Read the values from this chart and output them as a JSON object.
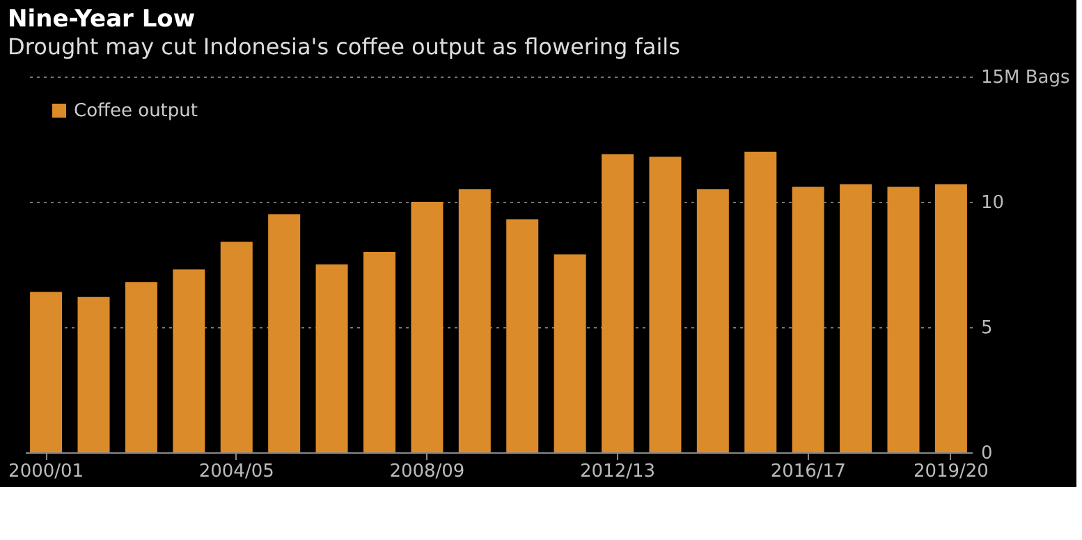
{
  "chart_data": {
    "type": "bar",
    "title": "Nine-Year Low",
    "subtitle": "Drought may cut Indonesia's coffee output as flowering fails",
    "categories": [
      "2000/01",
      null,
      null,
      null,
      "2004/05",
      null,
      null,
      null,
      "2008/09",
      null,
      null,
      null,
      "2012/13",
      null,
      null,
      null,
      "2016/17",
      null,
      null,
      "2019/20"
    ],
    "series": [
      {
        "name": "Coffee output",
        "color": "#dc8b2a",
        "values": [
          6.4,
          6.2,
          6.8,
          7.3,
          8.4,
          9.5,
          7.5,
          8.0,
          10.0,
          10.5,
          9.3,
          7.9,
          11.9,
          11.8,
          10.5,
          12.0,
          10.6,
          10.7,
          10.6,
          10.7
        ]
      }
    ],
    "ylim": [
      0,
      15
    ],
    "yticks": [
      0,
      5,
      10,
      {
        "value": 15,
        "label": "15M Bags"
      }
    ],
    "grid": "y",
    "legend": "top left"
  }
}
